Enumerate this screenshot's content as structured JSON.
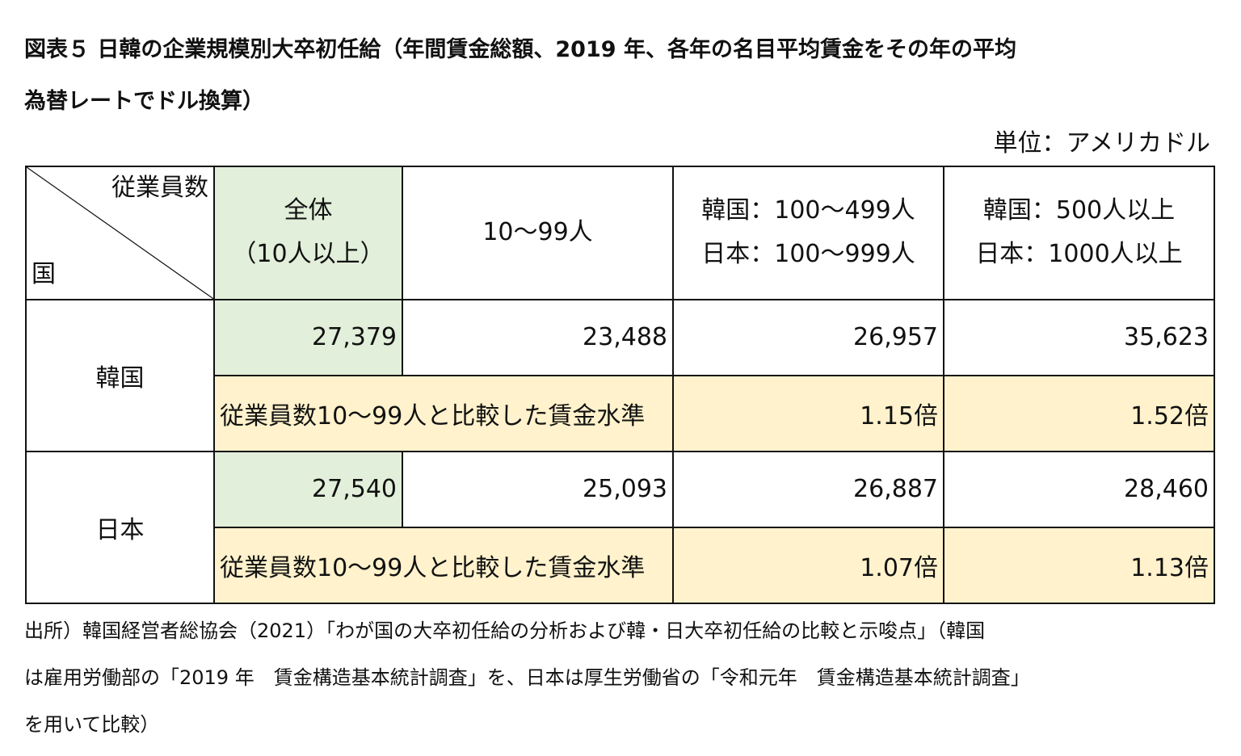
{
  "title": {
    "line1": "図表５ 日韓の企業規模別大卒初任給（年間賃金総額、2019 年、各年の名目平均賃金をその年の平均",
    "line2": "為替レートでドル換算）"
  },
  "unit": "単位：アメリカドル",
  "table": {
    "corner_top": "従業員数",
    "corner_bottom": "国",
    "headers": [
      {
        "line1": "全体",
        "line2": "（10人以上）"
      },
      {
        "line1": "10～99人",
        "line2": ""
      },
      {
        "line1": "韓国：100～499人",
        "line2": "日本：100～999人"
      },
      {
        "line1": "韓国：500人以上",
        "line2": "日本：1000人以上"
      }
    ],
    "rows": [
      {
        "country": "韓国",
        "values": [
          "27,379",
          "23,488",
          "26,957",
          "35,623"
        ],
        "ratio_label": "従業員数10～99人と比較した賃金水準",
        "ratios": [
          "1.15倍",
          "1.52倍"
        ]
      },
      {
        "country": "日本",
        "values": [
          "27,540",
          "25,093",
          "26,887",
          "28,460"
        ],
        "ratio_label": "従業員数10～99人と比較した賃金水準",
        "ratios": [
          "1.07倍",
          "1.13倍"
        ]
      }
    ]
  },
  "footnote": {
    "line1": "出所）韓国経営者総協会（2021）「わが国の大卒初任給の分析および韓・日大卒初任給の比較と示唆点」（韓国",
    "line2": "は雇用労働部の「2019 年　賃金構造基本統計調査」を、日本は厚生労働省の「令和元年　賃金構造基本統計調査」",
    "line3": "を用いて比較）"
  },
  "colors": {
    "green_cell": "#e2efda",
    "cream_cell": "#fff2cc",
    "border": "#111111"
  }
}
